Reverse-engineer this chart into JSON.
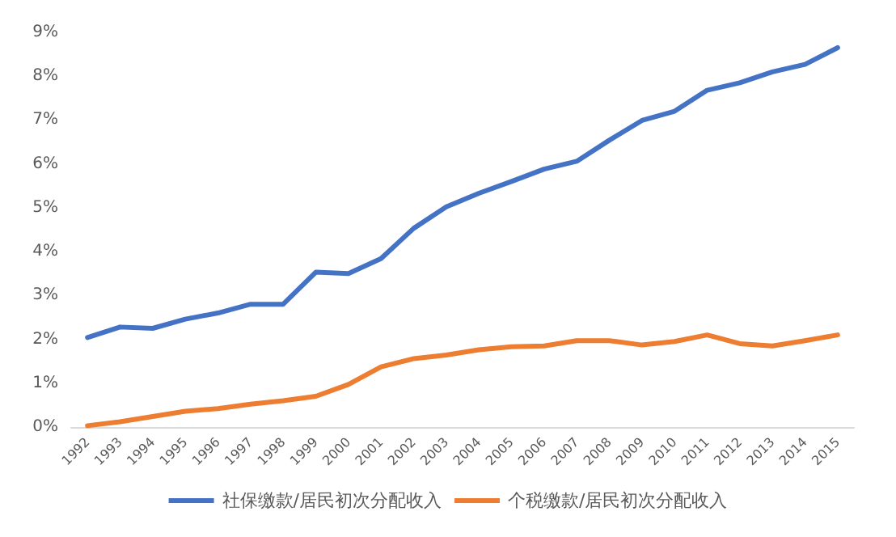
{
  "chart_data": {
    "type": "line",
    "categories": [
      "1992",
      "1993",
      "1994",
      "1995",
      "1996",
      "1997",
      "1998",
      "1999",
      "2000",
      "2001",
      "2002",
      "2003",
      "2004",
      "2005",
      "2006",
      "2007",
      "2008",
      "2009",
      "2010",
      "2011",
      "2012",
      "2013",
      "2014",
      "2015"
    ],
    "series": [
      {
        "name": "社保缴款/居民初次分配收入",
        "color": "#4472c4",
        "values": [
          2.04,
          2.28,
          2.25,
          2.46,
          2.6,
          2.8,
          2.8,
          3.53,
          3.5,
          3.84,
          4.53,
          5.02,
          5.33,
          5.6,
          5.88,
          6.06,
          6.54,
          6.99,
          7.2,
          7.68,
          7.85,
          8.1,
          8.27,
          8.65
        ]
      },
      {
        "name": "个税缴款/居民初次分配收入",
        "color": "#ed7d31",
        "values": [
          0.03,
          0.12,
          0.24,
          0.36,
          0.42,
          0.52,
          0.6,
          0.7,
          0.97,
          1.37,
          1.56,
          1.64,
          1.76,
          1.83,
          1.85,
          1.97,
          1.97,
          1.87,
          1.95,
          2.1,
          1.9,
          1.85,
          1.97,
          2.1
        ]
      }
    ],
    "ylim": [
      0,
      9
    ],
    "yticks": [
      {
        "value": 0,
        "label": "0%"
      },
      {
        "value": 1,
        "label": "1%"
      },
      {
        "value": 2,
        "label": "2%"
      },
      {
        "value": 3,
        "label": "3%"
      },
      {
        "value": 4,
        "label": "4%"
      },
      {
        "value": 5,
        "label": "5%"
      },
      {
        "value": 6,
        "label": "6%"
      },
      {
        "value": 7,
        "label": "7%"
      },
      {
        "value": 8,
        "label": "8%"
      },
      {
        "value": 9,
        "label": "9%"
      }
    ],
    "grid": false,
    "legend": "bottom",
    "marker": "none",
    "line_style": "solid"
  }
}
